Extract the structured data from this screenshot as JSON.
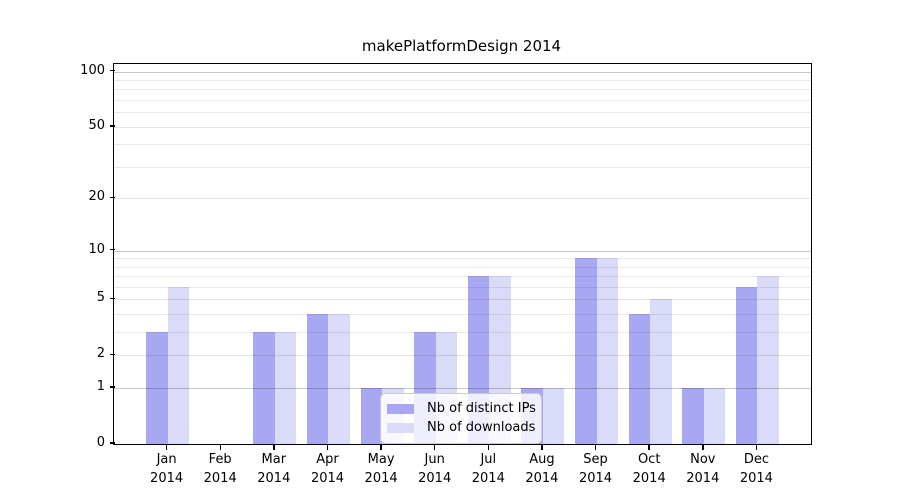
{
  "title": "makePlatformDesign 2014",
  "legend": {
    "items": [
      {
        "label": "Nb of distinct IPs",
        "color": "#a8a8f2"
      },
      {
        "label": "Nb of downloads",
        "color": "#dadaf9"
      }
    ],
    "position": "lower center"
  },
  "axis": {
    "months": [
      "Jan",
      "Feb",
      "Mar",
      "Apr",
      "May",
      "Jun",
      "Jul",
      "Aug",
      "Sep",
      "Oct",
      "Nov",
      "Dec"
    ],
    "year": "2014",
    "ytick_labels": [
      "100",
      "50",
      "20",
      "10",
      "5",
      "2",
      "1",
      "0"
    ]
  },
  "chart_data": {
    "type": "bar",
    "title": "makePlatformDesign 2014",
    "categories": [
      "Jan 2014",
      "Feb 2014",
      "Mar 2014",
      "Apr 2014",
      "May 2014",
      "Jun 2014",
      "Jul 2014",
      "Aug 2014",
      "Sep 2014",
      "Oct 2014",
      "Nov 2014",
      "Dec 2014"
    ],
    "series": [
      {
        "name": "Nb of distinct IPs",
        "color": "#a8a8f2",
        "values": [
          3,
          0,
          3,
          4,
          1,
          3,
          7,
          1,
          9,
          4,
          1,
          6
        ]
      },
      {
        "name": "Nb of downloads",
        "color": "#dadaf9",
        "values": [
          6,
          0,
          3,
          4,
          1,
          3,
          7,
          1,
          9,
          5,
          1,
          7
        ]
      }
    ],
    "xlabel": "",
    "ylabel": "",
    "yscale": "log1p",
    "ylim": [
      0,
      110
    ],
    "yticks": [
      100,
      50,
      20,
      10,
      5,
      2,
      1,
      0
    ],
    "minor_gridlines": [
      3,
      4,
      6,
      7,
      8,
      9,
      30,
      40,
      60,
      70,
      80,
      90
    ],
    "decade_gridlines": [
      1,
      10,
      100
    ],
    "grid": true,
    "legend_position": "lower center"
  }
}
